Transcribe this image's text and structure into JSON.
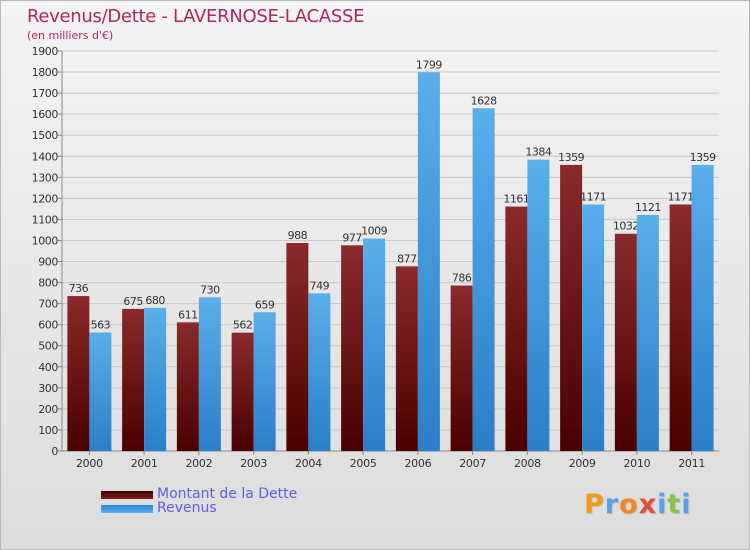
{
  "chart_data": {
    "type": "bar",
    "title": "Revenus/Dette - LAVERNOSE-LACASSE",
    "subtitle": "(en milliers d'€)",
    "categories": [
      "2000",
      "2001",
      "2002",
      "2003",
      "2004",
      "2005",
      "2006",
      "2007",
      "2008",
      "2009",
      "2010",
      "2011"
    ],
    "series": [
      {
        "name": "Montant de la Dette",
        "color": "#7a0f12",
        "values": [
          736,
          675,
          611,
          562,
          988,
          977,
          877,
          786,
          1161,
          1359,
          1032,
          1171
        ]
      },
      {
        "name": "Revenus",
        "color": "#3f9be6",
        "values": [
          563,
          680,
          730,
          659,
          749,
          1009,
          1799,
          1628,
          1384,
          1171,
          1121,
          1359
        ]
      }
    ],
    "ylim": [
      0,
      1900
    ],
    "yticks": [
      0,
      100,
      200,
      300,
      400,
      500,
      600,
      700,
      800,
      900,
      1000,
      1100,
      1200,
      1300,
      1400,
      1500,
      1600,
      1700,
      1800,
      1900
    ],
    "grid": true,
    "legend_position": "bottom-left"
  },
  "logo": {
    "text": "Proxiti",
    "letters": [
      {
        "ch": "P",
        "color": "#f39a1e"
      },
      {
        "ch": "r",
        "color": "#5aa0e6"
      },
      {
        "ch": "o",
        "color": "#f0882a"
      },
      {
        "ch": "x",
        "color": "#e34b3c"
      },
      {
        "ch": "i",
        "color": "#5aa0e6"
      },
      {
        "ch": "t",
        "color": "#8ac34a"
      },
      {
        "ch": "i",
        "color": "#5aa0e6"
      }
    ]
  }
}
